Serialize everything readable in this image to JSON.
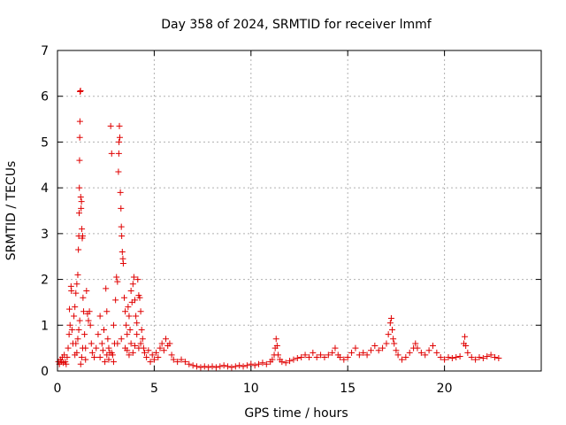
{
  "chart_data": {
    "type": "scatter",
    "title": "Day 358 of 2024, SRMTID for receiver lmmf",
    "xlabel": "GPS time / hours",
    "ylabel": "SRMTID / TECUs",
    "xlim": [
      0,
      25
    ],
    "ylim": [
      0,
      7
    ],
    "xticks": [
      0,
      5,
      10,
      15,
      20
    ],
    "yticks": [
      0,
      1,
      2,
      3,
      4,
      5,
      6,
      7
    ],
    "grid": true,
    "marker": "+",
    "series": [
      {
        "name": "SRMTID",
        "color": "#e00000",
        "points": [
          [
            0.05,
            0.2
          ],
          [
            0.1,
            0.15
          ],
          [
            0.15,
            0.25
          ],
          [
            0.2,
            0.2
          ],
          [
            0.25,
            0.3
          ],
          [
            0.3,
            0.18
          ],
          [
            0.35,
            0.35
          ],
          [
            0.4,
            0.2
          ],
          [
            0.45,
            0.15
          ],
          [
            0.5,
            0.3
          ],
          [
            0.55,
            0.5
          ],
          [
            0.6,
            0.8
          ],
          [
            0.62,
            1.35
          ],
          [
            0.65,
            1.0
          ],
          [
            0.7,
            1.85
          ],
          [
            0.72,
            1.75
          ],
          [
            0.75,
            0.9
          ],
          [
            0.8,
            0.6
          ],
          [
            0.85,
            1.2
          ],
          [
            0.9,
            1.4
          ],
          [
            0.95,
            1.7
          ],
          [
            1.0,
            1.9
          ],
          [
            1.05,
            2.1
          ],
          [
            1.08,
            2.65
          ],
          [
            1.1,
            2.95
          ],
          [
            1.12,
            3.45
          ],
          [
            1.13,
            4.0
          ],
          [
            1.14,
            4.6
          ],
          [
            1.15,
            5.1
          ],
          [
            1.16,
            5.45
          ],
          [
            1.17,
            6.1
          ],
          [
            1.19,
            6.12
          ],
          [
            1.2,
            3.8
          ],
          [
            1.22,
            3.55
          ],
          [
            1.24,
            3.7
          ],
          [
            1.26,
            3.1
          ],
          [
            1.28,
            2.9
          ],
          [
            1.3,
            2.95
          ],
          [
            1.32,
            1.6
          ],
          [
            1.35,
            1.3
          ],
          [
            1.4,
            0.8
          ],
          [
            1.45,
            0.5
          ],
          [
            1.5,
            1.75
          ],
          [
            1.55,
            1.25
          ],
          [
            1.6,
            1.1
          ],
          [
            1.65,
            1.3
          ],
          [
            1.7,
            1.0
          ],
          [
            1.75,
            0.6
          ],
          [
            1.8,
            0.4
          ],
          [
            1.9,
            0.3
          ],
          [
            1.0,
            0.4
          ],
          [
            1.05,
            0.7
          ],
          [
            1.15,
            1.1
          ],
          [
            1.25,
            0.3
          ],
          [
            1.2,
            0.15
          ],
          [
            0.9,
            0.35
          ],
          [
            0.95,
            0.6
          ],
          [
            1.1,
            0.9
          ],
          [
            1.3,
            0.5
          ],
          [
            1.45,
            0.25
          ],
          [
            2.0,
            0.5
          ],
          [
            2.1,
            0.8
          ],
          [
            2.2,
            1.2
          ],
          [
            2.3,
            0.6
          ],
          [
            2.4,
            0.9
          ],
          [
            2.5,
            1.8
          ],
          [
            2.55,
            1.3
          ],
          [
            2.6,
            0.7
          ],
          [
            2.65,
            0.5
          ],
          [
            2.7,
            0.4
          ],
          [
            2.75,
            5.35
          ],
          [
            2.8,
            4.75
          ],
          [
            2.85,
            0.35
          ],
          [
            2.9,
            1.0
          ],
          [
            2.95,
            0.6
          ],
          [
            3.0,
            1.55
          ],
          [
            3.05,
            2.05
          ],
          [
            3.1,
            1.95
          ],
          [
            3.15,
            4.35
          ],
          [
            3.17,
            4.75
          ],
          [
            3.18,
            5.0
          ],
          [
            3.2,
            5.35
          ],
          [
            3.22,
            5.1
          ],
          [
            3.25,
            3.9
          ],
          [
            3.28,
            3.55
          ],
          [
            3.3,
            3.15
          ],
          [
            3.32,
            2.95
          ],
          [
            3.35,
            2.6
          ],
          [
            3.38,
            2.45
          ],
          [
            3.4,
            2.35
          ],
          [
            3.45,
            1.6
          ],
          [
            3.5,
            1.3
          ],
          [
            3.55,
            1.0
          ],
          [
            3.6,
            0.8
          ],
          [
            3.65,
            1.4
          ],
          [
            3.7,
            1.2
          ],
          [
            3.75,
            0.9
          ],
          [
            3.8,
            1.75
          ],
          [
            3.85,
            1.5
          ],
          [
            3.9,
            1.9
          ],
          [
            3.95,
            2.05
          ],
          [
            4.0,
            1.55
          ],
          [
            4.05,
            1.2
          ],
          [
            4.1,
            1.05
          ],
          [
            4.15,
            2.0
          ],
          [
            4.2,
            1.65
          ],
          [
            4.25,
            1.6
          ],
          [
            4.3,
            1.3
          ],
          [
            4.35,
            0.9
          ],
          [
            4.4,
            0.7
          ],
          [
            2.2,
            0.3
          ],
          [
            2.35,
            0.45
          ],
          [
            2.45,
            0.2
          ],
          [
            2.55,
            0.35
          ],
          [
            2.65,
            0.25
          ],
          [
            2.8,
            0.4
          ],
          [
            2.9,
            0.2
          ],
          [
            3.1,
            0.6
          ],
          [
            3.3,
            0.7
          ],
          [
            3.5,
            0.5
          ],
          [
            3.6,
            0.45
          ],
          [
            3.7,
            0.35
          ],
          [
            3.8,
            0.6
          ],
          [
            3.9,
            0.4
          ],
          [
            4.0,
            0.55
          ],
          [
            4.1,
            0.8
          ],
          [
            4.2,
            0.5
          ],
          [
            4.3,
            0.6
          ],
          [
            4.45,
            0.5
          ],
          [
            4.5,
            0.4
          ],
          [
            4.6,
            0.3
          ],
          [
            4.7,
            0.45
          ],
          [
            4.8,
            0.2
          ],
          [
            4.9,
            0.35
          ],
          [
            5.0,
            0.25
          ],
          [
            5.1,
            0.4
          ],
          [
            5.2,
            0.3
          ],
          [
            5.3,
            0.5
          ],
          [
            5.4,
            0.6
          ],
          [
            5.5,
            0.45
          ],
          [
            5.6,
            0.7
          ],
          [
            5.7,
            0.55
          ],
          [
            5.8,
            0.6
          ],
          [
            5.9,
            0.35
          ],
          [
            6.0,
            0.25
          ],
          [
            6.2,
            0.2
          ],
          [
            6.4,
            0.25
          ],
          [
            6.6,
            0.2
          ],
          [
            6.8,
            0.15
          ],
          [
            7.0,
            0.12
          ],
          [
            7.2,
            0.1
          ],
          [
            7.4,
            0.08
          ],
          [
            7.6,
            0.1
          ],
          [
            7.8,
            0.08
          ],
          [
            8.0,
            0.1
          ],
          [
            8.2,
            0.08
          ],
          [
            8.4,
            0.1
          ],
          [
            8.6,
            0.12
          ],
          [
            8.8,
            0.1
          ],
          [
            9.0,
            0.08
          ],
          [
            9.2,
            0.1
          ],
          [
            9.4,
            0.12
          ],
          [
            9.6,
            0.1
          ],
          [
            9.8,
            0.12
          ],
          [
            10.0,
            0.15
          ],
          [
            10.2,
            0.12
          ],
          [
            10.4,
            0.15
          ],
          [
            10.6,
            0.18
          ],
          [
            10.8,
            0.15
          ],
          [
            11.0,
            0.2
          ],
          [
            11.1,
            0.25
          ],
          [
            11.2,
            0.35
          ],
          [
            11.25,
            0.5
          ],
          [
            11.3,
            0.7
          ],
          [
            11.35,
            0.55
          ],
          [
            11.4,
            0.35
          ],
          [
            11.5,
            0.25
          ],
          [
            11.6,
            0.2
          ],
          [
            11.8,
            0.18
          ],
          [
            12.0,
            0.22
          ],
          [
            12.2,
            0.25
          ],
          [
            12.4,
            0.28
          ],
          [
            12.6,
            0.3
          ],
          [
            12.8,
            0.35
          ],
          [
            13.0,
            0.3
          ],
          [
            13.2,
            0.4
          ],
          [
            13.4,
            0.3
          ],
          [
            13.6,
            0.35
          ],
          [
            13.8,
            0.3
          ],
          [
            14.0,
            0.35
          ],
          [
            14.2,
            0.4
          ],
          [
            14.35,
            0.5
          ],
          [
            14.5,
            0.35
          ],
          [
            14.6,
            0.3
          ],
          [
            14.8,
            0.25
          ],
          [
            15.0,
            0.3
          ],
          [
            15.2,
            0.4
          ],
          [
            15.4,
            0.5
          ],
          [
            15.6,
            0.35
          ],
          [
            15.8,
            0.4
          ],
          [
            16.0,
            0.35
          ],
          [
            16.2,
            0.45
          ],
          [
            16.4,
            0.55
          ],
          [
            16.6,
            0.45
          ],
          [
            16.8,
            0.5
          ],
          [
            17.0,
            0.6
          ],
          [
            17.1,
            0.8
          ],
          [
            17.2,
            1.05
          ],
          [
            17.25,
            1.15
          ],
          [
            17.3,
            0.9
          ],
          [
            17.35,
            0.7
          ],
          [
            17.4,
            0.6
          ],
          [
            17.5,
            0.45
          ],
          [
            17.6,
            0.35
          ],
          [
            17.8,
            0.25
          ],
          [
            18.0,
            0.3
          ],
          [
            18.2,
            0.4
          ],
          [
            18.4,
            0.5
          ],
          [
            18.5,
            0.6
          ],
          [
            18.6,
            0.5
          ],
          [
            18.8,
            0.4
          ],
          [
            19.0,
            0.35
          ],
          [
            19.2,
            0.45
          ],
          [
            19.4,
            0.55
          ],
          [
            19.6,
            0.4
          ],
          [
            19.8,
            0.3
          ],
          [
            20.0,
            0.25
          ],
          [
            20.2,
            0.3
          ],
          [
            20.4,
            0.28
          ],
          [
            20.6,
            0.3
          ],
          [
            20.8,
            0.32
          ],
          [
            21.0,
            0.6
          ],
          [
            21.05,
            0.75
          ],
          [
            21.1,
            0.55
          ],
          [
            21.2,
            0.4
          ],
          [
            21.4,
            0.3
          ],
          [
            21.6,
            0.25
          ],
          [
            21.8,
            0.3
          ],
          [
            22.0,
            0.28
          ],
          [
            22.2,
            0.32
          ],
          [
            22.4,
            0.35
          ],
          [
            22.6,
            0.3
          ],
          [
            22.8,
            0.28
          ]
        ]
      }
    ]
  }
}
